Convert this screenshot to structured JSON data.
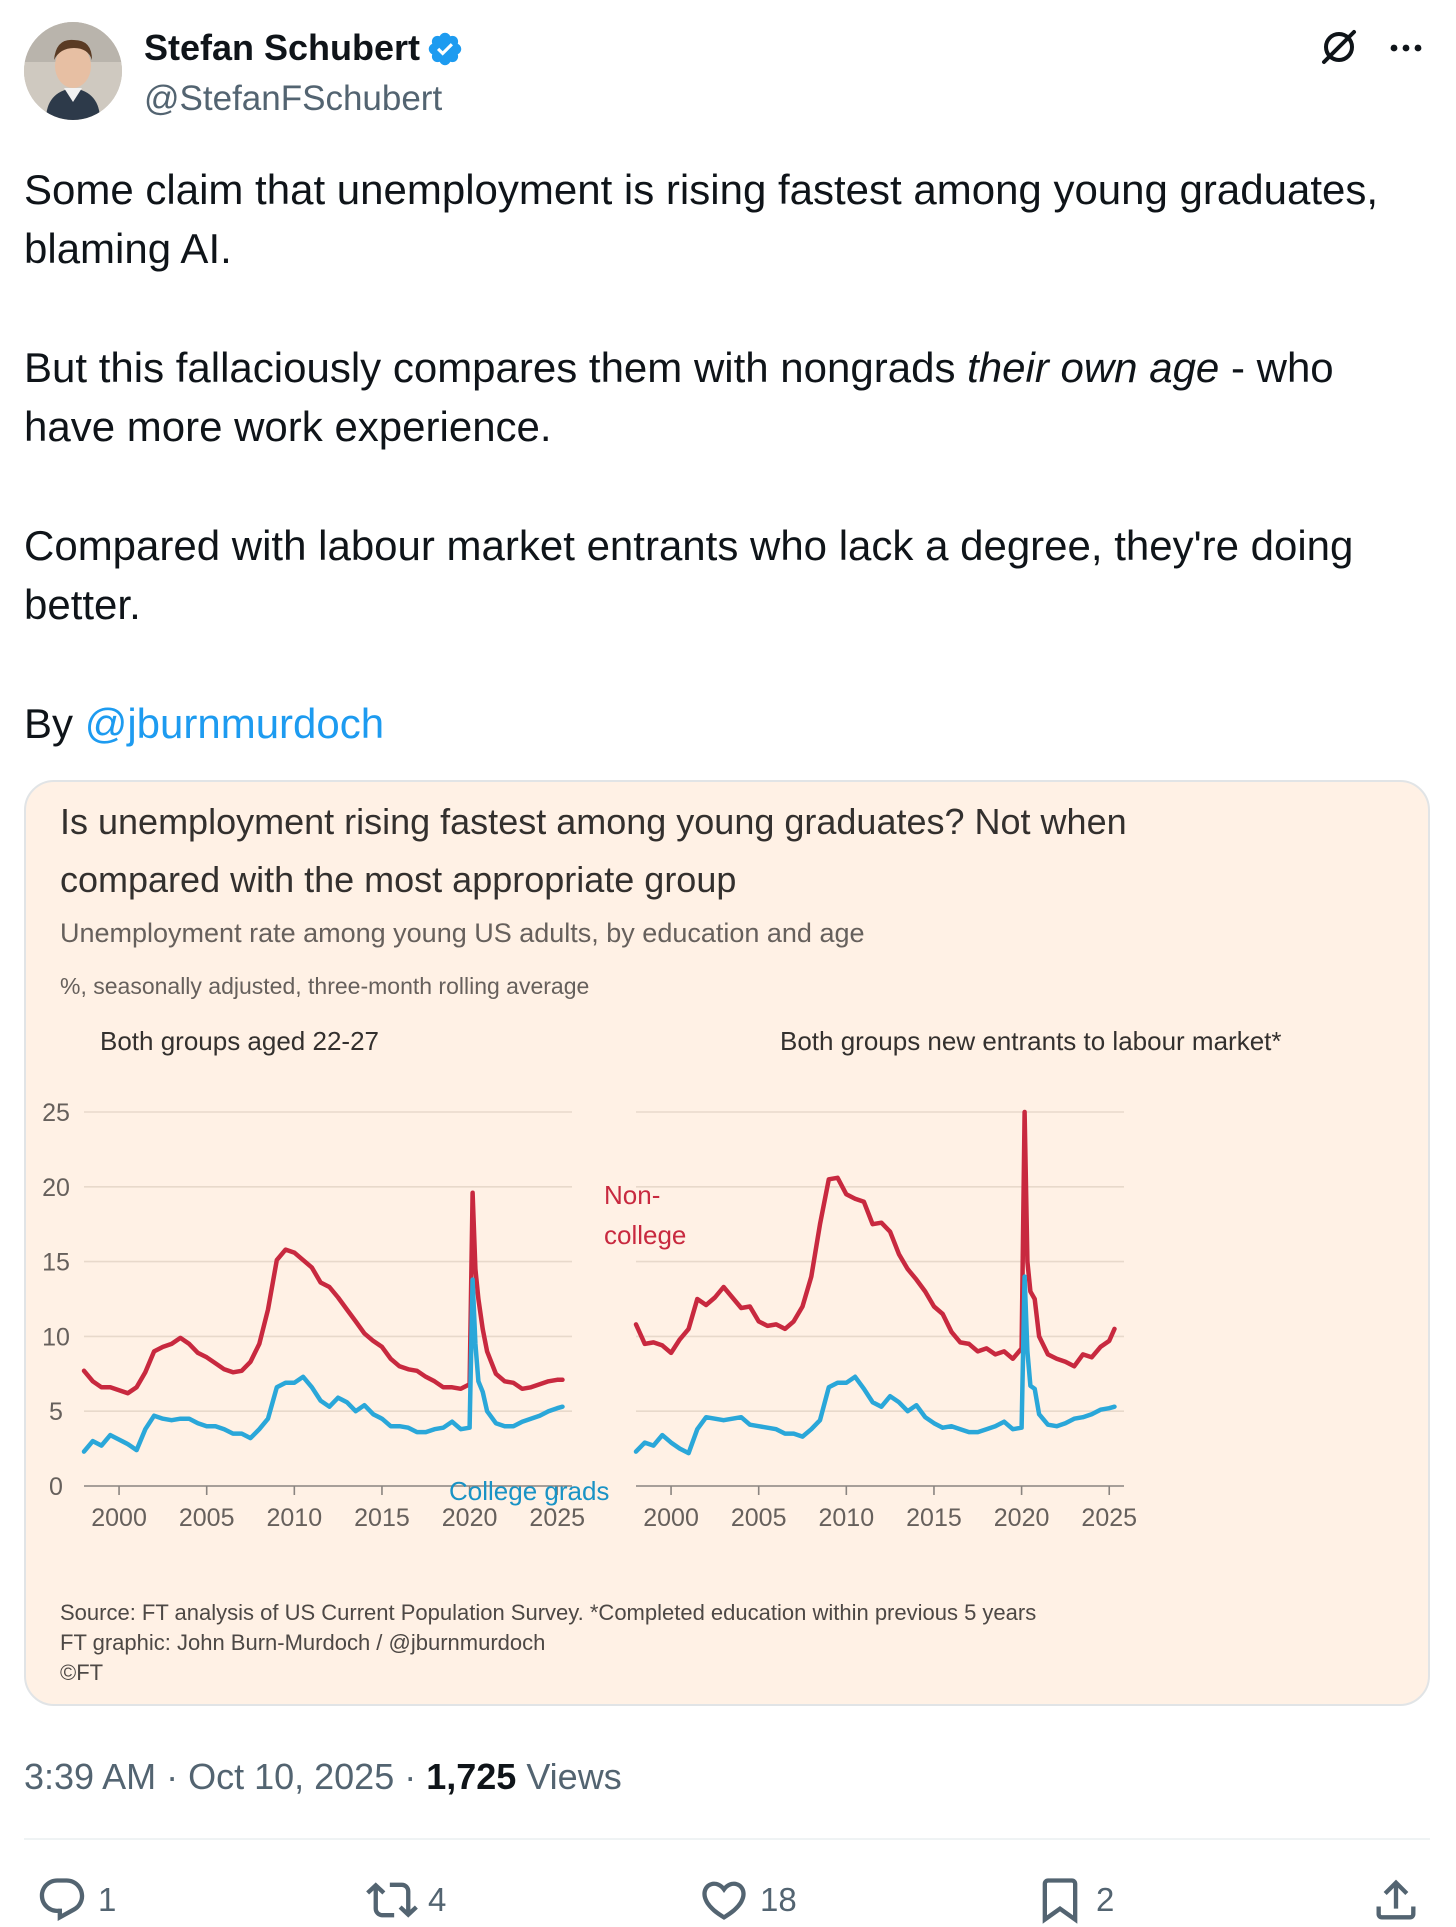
{
  "author": {
    "name": "Stefan Schubert",
    "handle": "@StefanFSchubert"
  },
  "tweet": {
    "line1": "Some claim that unemployment is rising fastest among young graduates,",
    "line2": "blaming AI.",
    "line3_before": "But this fallaciously compares them with nongrads ",
    "line3_em": "their own age",
    "line3_after": " - who",
    "line4": "have more work experience.",
    "line5": "Compared with labour market entrants who lack a degree, they're doing",
    "line6": "better.",
    "by_label": "By ",
    "mention": "@jburnmurdoch"
  },
  "card": {
    "title_line1": "Is unemployment rising fastest among young graduates? Not when",
    "title_line2": "compared with the most appropriate group",
    "subtitle": "Unemployment rate among young US adults, by education and age",
    "unit_note": "%, seasonally adjusted, three-month rolling average",
    "source_line1": "Source: FT analysis of US Current Population Survey. *Completed education within previous 5 years",
    "source_line2": "FT graphic: John Burn-Murdoch / @jburnmurdoch",
    "source_line3": "©FT"
  },
  "chart_data": [
    {
      "type": "line",
      "title": "Both groups aged 22-27",
      "ylim": [
        0,
        25
      ],
      "yticks": [
        0,
        5,
        10,
        15,
        20,
        25
      ],
      "xticks": [
        2000,
        2005,
        2010,
        2015,
        2020,
        2025
      ],
      "xrange": [
        1998,
        2025.5
      ],
      "grid": true,
      "series": [
        {
          "name": "Non-college",
          "color": "#c8293f",
          "x": [
            1998,
            1998.5,
            1999,
            1999.5,
            2000,
            2000.5,
            2001,
            2001.5,
            2002,
            2002.5,
            2003,
            2003.5,
            2004,
            2004.5,
            2005,
            2005.5,
            2006,
            2006.5,
            2007,
            2007.5,
            2008,
            2008.5,
            2009,
            2009.5,
            2010,
            2010.5,
            2011,
            2011.5,
            2012,
            2012.5,
            2013,
            2013.5,
            2014,
            2014.5,
            2015,
            2015.5,
            2016,
            2016.5,
            2017,
            2017.5,
            2018,
            2018.5,
            2019,
            2019.5,
            2020,
            2020.17,
            2020.33,
            2020.5,
            2020.75,
            2021,
            2021.5,
            2022,
            2022.5,
            2023,
            2023.5,
            2024,
            2024.5,
            2025,
            2025.3
          ],
          "y": [
            7.7,
            7.0,
            6.6,
            6.6,
            6.4,
            6.2,
            6.6,
            7.6,
            9.0,
            9.3,
            9.5,
            9.9,
            9.5,
            8.9,
            8.6,
            8.2,
            7.8,
            7.6,
            7.7,
            8.3,
            9.5,
            11.8,
            15.1,
            15.8,
            15.6,
            15.1,
            14.6,
            13.6,
            13.3,
            12.6,
            11.8,
            11.0,
            10.2,
            9.7,
            9.3,
            8.5,
            8.0,
            7.8,
            7.7,
            7.3,
            7.0,
            6.6,
            6.6,
            6.5,
            6.8,
            19.6,
            14.5,
            12.5,
            10.5,
            9.0,
            7.5,
            7.0,
            6.9,
            6.5,
            6.6,
            6.8,
            7.0,
            7.1,
            7.1
          ]
        },
        {
          "name": "College grads",
          "color": "#2aa7d9",
          "x": [
            1998,
            1998.5,
            1999,
            1999.5,
            2000,
            2000.5,
            2001,
            2001.5,
            2002,
            2002.5,
            2003,
            2003.5,
            2004,
            2004.5,
            2005,
            2005.5,
            2006,
            2006.5,
            2007,
            2007.5,
            2008,
            2008.5,
            2009,
            2009.5,
            2010,
            2010.5,
            2011,
            2011.5,
            2012,
            2012.5,
            2013,
            2013.5,
            2014,
            2014.5,
            2015,
            2015.5,
            2016,
            2016.5,
            2017,
            2017.5,
            2018,
            2018.5,
            2019,
            2019.5,
            2020,
            2020.17,
            2020.33,
            2020.5,
            2020.75,
            2021,
            2021.5,
            2022,
            2022.5,
            2023,
            2023.5,
            2024,
            2024.5,
            2025,
            2025.3
          ],
          "y": [
            2.3,
            3.0,
            2.7,
            3.4,
            3.1,
            2.8,
            2.4,
            3.8,
            4.7,
            4.5,
            4.4,
            4.5,
            4.5,
            4.2,
            4.0,
            4.0,
            3.8,
            3.5,
            3.5,
            3.2,
            3.8,
            4.5,
            6.6,
            6.9,
            6.9,
            7.3,
            6.6,
            5.7,
            5.3,
            5.9,
            5.6,
            5.0,
            5.4,
            4.8,
            4.5,
            4.0,
            4.0,
            3.9,
            3.6,
            3.6,
            3.8,
            3.9,
            4.3,
            3.8,
            3.9,
            13.8,
            9.5,
            7.0,
            6.3,
            5.0,
            4.2,
            4.0,
            4.0,
            4.3,
            4.5,
            4.7,
            5.0,
            5.2,
            5.3
          ]
        }
      ],
      "annotations": [
        {
          "text_line1": "Non-",
          "text_line2": "college",
          "series": "Non-college"
        },
        {
          "text": "College grads",
          "series": "College grads"
        }
      ]
    },
    {
      "type": "line",
      "title": "Both groups new entrants to labour market*",
      "ylim": [
        0,
        25
      ],
      "yticks": [
        0,
        5,
        10,
        15,
        20,
        25
      ],
      "xticks": [
        2000,
        2005,
        2010,
        2015,
        2020,
        2025
      ],
      "xrange": [
        1998,
        2025.5
      ],
      "grid": true,
      "series": [
        {
          "name": "Non-college",
          "color": "#c8293f",
          "x": [
            1998,
            1998.5,
            1999,
            1999.5,
            2000,
            2000.5,
            2001,
            2001.5,
            2002,
            2002.5,
            2003,
            2003.5,
            2004,
            2004.5,
            2005,
            2005.5,
            2006,
            2006.5,
            2007,
            2007.5,
            2008,
            2008.5,
            2009,
            2009.5,
            2010,
            2010.5,
            2011,
            2011.5,
            2012,
            2012.5,
            2013,
            2013.5,
            2014,
            2014.5,
            2015,
            2015.5,
            2016,
            2016.5,
            2017,
            2017.5,
            2018,
            2018.5,
            2019,
            2019.5,
            2020,
            2020.17,
            2020.33,
            2020.5,
            2020.75,
            2021,
            2021.5,
            2022,
            2022.5,
            2023,
            2023.5,
            2024,
            2024.5,
            2025,
            2025.3
          ],
          "y": [
            10.8,
            9.5,
            9.6,
            9.4,
            8.9,
            9.8,
            10.5,
            12.5,
            12.1,
            12.6,
            13.3,
            12.6,
            11.9,
            12.0,
            11.0,
            10.7,
            10.8,
            10.5,
            11.0,
            12.0,
            14.0,
            17.5,
            20.5,
            20.6,
            19.5,
            19.2,
            19.0,
            17.5,
            17.6,
            17.0,
            15.5,
            14.5,
            13.8,
            13.0,
            12.0,
            11.5,
            10.3,
            9.6,
            9.5,
            9.0,
            9.2,
            8.8,
            9.0,
            8.5,
            9.2,
            25.0,
            15.0,
            13.0,
            12.5,
            10.0,
            8.8,
            8.5,
            8.3,
            8.0,
            8.8,
            8.6,
            9.3,
            9.7,
            10.5
          ]
        },
        {
          "name": "College grads",
          "color": "#2aa7d9",
          "x": [
            1998,
            1998.5,
            1999,
            1999.5,
            2000,
            2000.5,
            2001,
            2001.5,
            2002,
            2002.5,
            2003,
            2003.5,
            2004,
            2004.5,
            2005,
            2005.5,
            2006,
            2006.5,
            2007,
            2007.5,
            2008,
            2008.5,
            2009,
            2009.5,
            2010,
            2010.5,
            2011,
            2011.5,
            2012,
            2012.5,
            2013,
            2013.5,
            2014,
            2014.5,
            2015,
            2015.5,
            2016,
            2016.5,
            2017,
            2017.5,
            2018,
            2018.5,
            2019,
            2019.5,
            2020,
            2020.17,
            2020.33,
            2020.5,
            2020.75,
            2021,
            2021.5,
            2022,
            2022.5,
            2023,
            2023.5,
            2024,
            2024.5,
            2025,
            2025.3
          ],
          "y": [
            2.3,
            2.9,
            2.7,
            3.4,
            2.9,
            2.5,
            2.2,
            3.8,
            4.6,
            4.5,
            4.4,
            4.5,
            4.6,
            4.1,
            4.0,
            3.9,
            3.8,
            3.5,
            3.5,
            3.3,
            3.8,
            4.4,
            6.6,
            6.9,
            6.9,
            7.3,
            6.5,
            5.6,
            5.3,
            6.0,
            5.6,
            5.0,
            5.4,
            4.6,
            4.2,
            3.9,
            4.0,
            3.8,
            3.6,
            3.6,
            3.8,
            4.0,
            4.3,
            3.8,
            3.9,
            14.0,
            9.0,
            6.7,
            6.5,
            4.8,
            4.1,
            4.0,
            4.2,
            4.5,
            4.6,
            4.8,
            5.1,
            5.2,
            5.3
          ]
        }
      ]
    }
  ],
  "timestamp": {
    "time_date": "3:39 AM · Oct 10, 2025 · ",
    "views_count": "1,725",
    "views_label": " Views"
  },
  "actions": {
    "replies": "1",
    "reposts": "4",
    "likes": "18",
    "bookmarks": "2"
  },
  "colors": {
    "accent": "#1d9bf0",
    "card_bg": "#fff1e5",
    "non_college": "#c8293f",
    "college": "#2aa7d9",
    "muted": "#536471"
  },
  "icons": [
    "verified-badge-icon",
    "grok-icon",
    "more-icon",
    "reply-icon",
    "repost-icon",
    "like-icon",
    "bookmark-icon",
    "share-icon"
  ]
}
